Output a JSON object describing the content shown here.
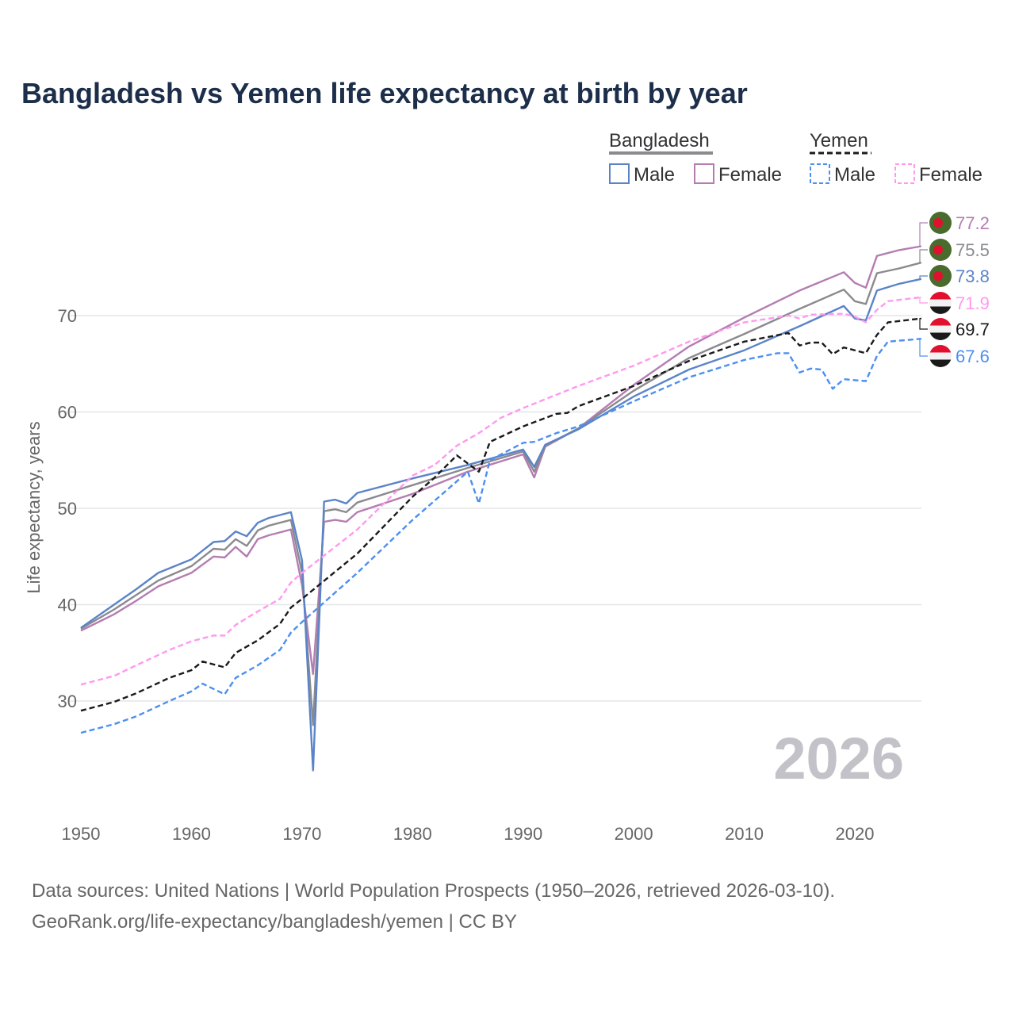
{
  "chart_data": {
    "type": "line",
    "title": "Bangladesh vs Yemen life expectancy at birth by year",
    "xlabel": "",
    "ylabel": "Life expectancy, years",
    "xlim": [
      1950,
      2026
    ],
    "ylim": [
      20,
      80
    ],
    "x_ticks": [
      1950,
      1960,
      1970,
      1980,
      1990,
      2000,
      2010,
      2020
    ],
    "y_ticks": [
      30,
      40,
      50,
      60,
      70
    ],
    "grid": true,
    "current_year": "2026",
    "legend": {
      "placement": "top-right",
      "groups": [
        {
          "name": "Bangladesh",
          "color": "#8a8a8f",
          "dashed": false,
          "items": [
            {
              "label": "Male",
              "color": "#5b84c8"
            },
            {
              "label": "Female",
              "color": "#b47db2"
            }
          ]
        },
        {
          "name": "Yemen",
          "color": "#1a1a1a",
          "dashed": true,
          "items": [
            {
              "label": "Male",
              "color": "#4d8ff0"
            },
            {
              "label": "Female",
              "color": "#ff99ee"
            }
          ]
        }
      ]
    },
    "series": [
      {
        "name": "Bangladesh Female",
        "country": "bangladesh",
        "color": "#b47db2",
        "dashed": false,
        "end_label": "77.2",
        "points": [
          [
            1950,
            37.3
          ],
          [
            1953,
            39.0
          ],
          [
            1955,
            40.4
          ],
          [
            1957,
            41.9
          ],
          [
            1960,
            43.3
          ],
          [
            1962,
            45.0
          ],
          [
            1963,
            44.9
          ],
          [
            1964,
            46.0
          ],
          [
            1965,
            45.0
          ],
          [
            1966,
            46.8
          ],
          [
            1967,
            47.2
          ],
          [
            1968,
            47.5
          ],
          [
            1969,
            47.8
          ],
          [
            1970,
            42.0
          ],
          [
            1971,
            32.8
          ],
          [
            1972,
            48.6
          ],
          [
            1973,
            48.8
          ],
          [
            1974,
            48.6
          ],
          [
            1975,
            49.6
          ],
          [
            1980,
            51.5
          ],
          [
            1985,
            53.8
          ],
          [
            1990,
            55.6
          ],
          [
            1991,
            53.2
          ],
          [
            1992,
            56.4
          ],
          [
            1995,
            58.3
          ],
          [
            2000,
            62.8
          ],
          [
            2005,
            66.8
          ],
          [
            2010,
            69.8
          ],
          [
            2015,
            72.6
          ],
          [
            2019,
            74.5
          ],
          [
            2020,
            73.4
          ],
          [
            2021,
            72.9
          ],
          [
            2022,
            76.2
          ],
          [
            2024,
            76.8
          ],
          [
            2026,
            77.2
          ]
        ]
      },
      {
        "name": "Bangladesh",
        "country": "bangladesh",
        "color": "#8a8a8f",
        "dashed": false,
        "end_label": "75.5",
        "points": [
          [
            1950,
            37.5
          ],
          [
            1953,
            39.5
          ],
          [
            1955,
            41.0
          ],
          [
            1957,
            42.5
          ],
          [
            1960,
            44.0
          ],
          [
            1962,
            45.8
          ],
          [
            1963,
            45.7
          ],
          [
            1964,
            46.8
          ],
          [
            1965,
            46.1
          ],
          [
            1966,
            47.7
          ],
          [
            1967,
            48.2
          ],
          [
            1968,
            48.5
          ],
          [
            1969,
            48.8
          ],
          [
            1970,
            43.3
          ],
          [
            1971,
            27.5
          ],
          [
            1972,
            49.7
          ],
          [
            1973,
            49.9
          ],
          [
            1974,
            49.6
          ],
          [
            1975,
            50.6
          ],
          [
            1980,
            52.4
          ],
          [
            1985,
            54.2
          ],
          [
            1990,
            55.9
          ],
          [
            1991,
            53.8
          ],
          [
            1992,
            56.5
          ],
          [
            1995,
            58.3
          ],
          [
            2000,
            62.2
          ],
          [
            2005,
            65.6
          ],
          [
            2010,
            68.1
          ],
          [
            2015,
            70.7
          ],
          [
            2019,
            72.7
          ],
          [
            2020,
            71.5
          ],
          [
            2021,
            71.2
          ],
          [
            2022,
            74.4
          ],
          [
            2024,
            74.9
          ],
          [
            2026,
            75.5
          ]
        ]
      },
      {
        "name": "Bangladesh Male",
        "country": "bangladesh",
        "color": "#5b84c8",
        "dashed": false,
        "end_label": "73.8",
        "points": [
          [
            1950,
            37.6
          ],
          [
            1953,
            40.0
          ],
          [
            1955,
            41.6
          ],
          [
            1957,
            43.3
          ],
          [
            1960,
            44.7
          ],
          [
            1962,
            46.5
          ],
          [
            1963,
            46.6
          ],
          [
            1964,
            47.6
          ],
          [
            1965,
            47.1
          ],
          [
            1966,
            48.5
          ],
          [
            1967,
            49.0
          ],
          [
            1968,
            49.3
          ],
          [
            1969,
            49.6
          ],
          [
            1970,
            44.6
          ],
          [
            1971,
            22.8
          ],
          [
            1972,
            50.7
          ],
          [
            1973,
            50.9
          ],
          [
            1974,
            50.5
          ],
          [
            1975,
            51.6
          ],
          [
            1980,
            53.1
          ],
          [
            1985,
            54.5
          ],
          [
            1990,
            56.1
          ],
          [
            1991,
            54.3
          ],
          [
            1992,
            56.6
          ],
          [
            1995,
            58.2
          ],
          [
            2000,
            61.6
          ],
          [
            2005,
            64.4
          ],
          [
            2010,
            66.4
          ],
          [
            2015,
            68.9
          ],
          [
            2019,
            71.0
          ],
          [
            2020,
            69.7
          ],
          [
            2021,
            69.5
          ],
          [
            2022,
            72.6
          ],
          [
            2024,
            73.3
          ],
          [
            2026,
            73.8
          ]
        ]
      },
      {
        "name": "Yemen Female",
        "country": "yemen",
        "color": "#ff99ee",
        "dashed": true,
        "end_label": "71.9",
        "points": [
          [
            1950,
            31.7
          ],
          [
            1953,
            32.6
          ],
          [
            1955,
            33.7
          ],
          [
            1958,
            35.3
          ],
          [
            1960,
            36.2
          ],
          [
            1962,
            36.8
          ],
          [
            1963,
            36.8
          ],
          [
            1964,
            37.9
          ],
          [
            1966,
            39.3
          ],
          [
            1968,
            40.6
          ],
          [
            1969,
            42.3
          ],
          [
            1970,
            43.3
          ],
          [
            1975,
            47.8
          ],
          [
            1980,
            53.4
          ],
          [
            1982,
            54.5
          ],
          [
            1984,
            56.5
          ],
          [
            1986,
            57.8
          ],
          [
            1988,
            59.4
          ],
          [
            1990,
            60.4
          ],
          [
            1995,
            62.7
          ],
          [
            2000,
            64.8
          ],
          [
            2005,
            67.3
          ],
          [
            2010,
            69.3
          ],
          [
            2014,
            70.0
          ],
          [
            2015,
            69.7
          ],
          [
            2016,
            70.1
          ],
          [
            2019,
            70.2
          ],
          [
            2020,
            69.9
          ],
          [
            2021,
            69.3
          ],
          [
            2022,
            70.6
          ],
          [
            2023,
            71.5
          ],
          [
            2026,
            71.9
          ]
        ]
      },
      {
        "name": "Yemen",
        "country": "yemen",
        "color": "#1a1a1a",
        "dashed": true,
        "end_label": "69.7",
        "points": [
          [
            1950,
            29.0
          ],
          [
            1953,
            29.9
          ],
          [
            1955,
            30.8
          ],
          [
            1958,
            32.4
          ],
          [
            1960,
            33.2
          ],
          [
            1961,
            34.1
          ],
          [
            1963,
            33.5
          ],
          [
            1964,
            35.0
          ],
          [
            1966,
            36.3
          ],
          [
            1968,
            38.0
          ],
          [
            1969,
            39.7
          ],
          [
            1970,
            40.6
          ],
          [
            1975,
            45.3
          ],
          [
            1980,
            51.2
          ],
          [
            1982,
            53.2
          ],
          [
            1984,
            55.5
          ],
          [
            1986,
            53.8
          ],
          [
            1987,
            56.9
          ],
          [
            1990,
            58.5
          ],
          [
            1993,
            59.8
          ],
          [
            1994,
            59.9
          ],
          [
            1995,
            60.6
          ],
          [
            2000,
            62.7
          ],
          [
            2005,
            65.3
          ],
          [
            2010,
            67.3
          ],
          [
            2014,
            68.2
          ],
          [
            2015,
            66.9
          ],
          [
            2016,
            67.2
          ],
          [
            2017,
            67.2
          ],
          [
            2018,
            66.0
          ],
          [
            2019,
            66.7
          ],
          [
            2021,
            66.1
          ],
          [
            2022,
            68.0
          ],
          [
            2023,
            69.3
          ],
          [
            2026,
            69.7
          ]
        ]
      },
      {
        "name": "Yemen Male",
        "country": "yemen",
        "color": "#4d8ff0",
        "dashed": true,
        "end_label": "67.6",
        "points": [
          [
            1950,
            26.7
          ],
          [
            1953,
            27.6
          ],
          [
            1955,
            28.4
          ],
          [
            1958,
            30.0
          ],
          [
            1960,
            31.0
          ],
          [
            1961,
            31.8
          ],
          [
            1963,
            30.7
          ],
          [
            1964,
            32.4
          ],
          [
            1966,
            33.7
          ],
          [
            1968,
            35.3
          ],
          [
            1969,
            37.1
          ],
          [
            1970,
            38.2
          ],
          [
            1975,
            43.3
          ],
          [
            1980,
            48.8
          ],
          [
            1982,
            50.8
          ],
          [
            1985,
            53.8
          ],
          [
            1986,
            50.5
          ],
          [
            1987,
            55.0
          ],
          [
            1990,
            56.8
          ],
          [
            1991,
            56.9
          ],
          [
            1993,
            57.8
          ],
          [
            1995,
            58.5
          ],
          [
            2000,
            61.1
          ],
          [
            2005,
            63.6
          ],
          [
            2010,
            65.4
          ],
          [
            2013,
            66.1
          ],
          [
            2014,
            66.1
          ],
          [
            2015,
            64.1
          ],
          [
            2016,
            64.5
          ],
          [
            2017,
            64.4
          ],
          [
            2018,
            62.4
          ],
          [
            2019,
            63.4
          ],
          [
            2021,
            63.2
          ],
          [
            2022,
            65.8
          ],
          [
            2023,
            67.3
          ],
          [
            2026,
            67.6
          ]
        ]
      }
    ]
  },
  "footer": {
    "line1": "Data sources: United Nations | World Population Prospects (1950–2026, retrieved 2026-03-10).",
    "line2": "GeoRank.org/life-expectancy/bangladesh/yemen | CC BY"
  }
}
